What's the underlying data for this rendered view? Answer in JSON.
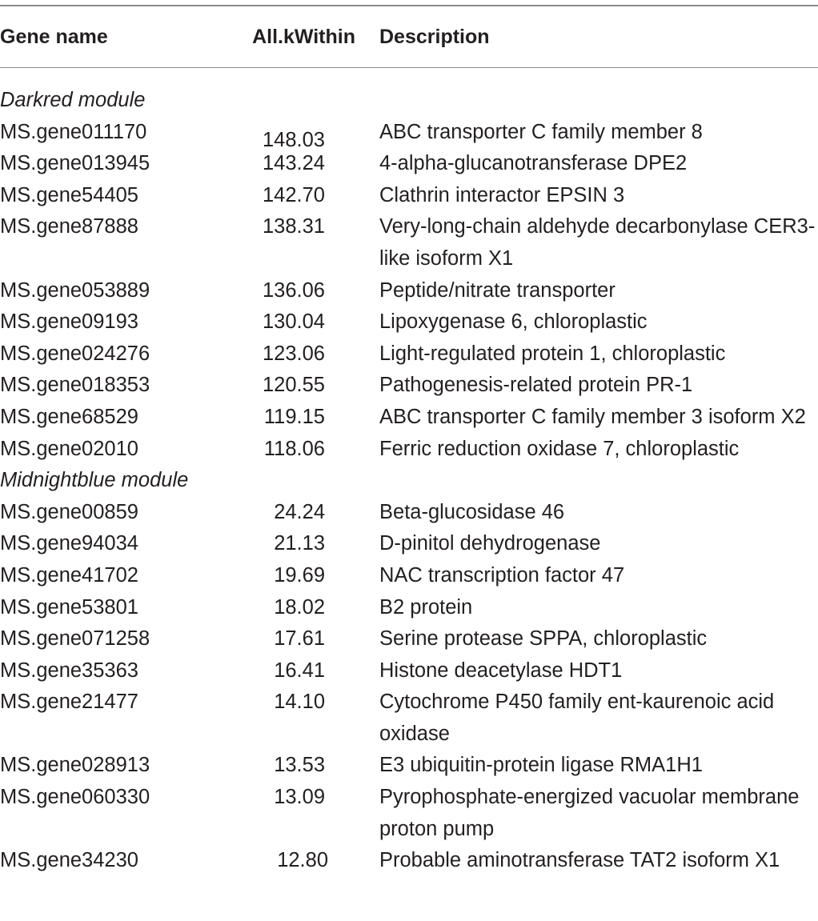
{
  "table": {
    "headers": {
      "gene": "Gene name",
      "value": "All.kWithin",
      "description": "Description"
    },
    "sections": [
      {
        "label": "Darkred module",
        "rows": [
          {
            "gene": "MS.gene011170",
            "value": "148.03",
            "description": "ABC transporter C family member 8"
          },
          {
            "gene": "MS.gene013945",
            "value": "143.24",
            "description": "4-alpha-glucanotransferase DPE2"
          },
          {
            "gene": "MS.gene54405",
            "value": "142.70",
            "description": "Clathrin interactor EPSIN 3"
          },
          {
            "gene": "MS.gene87888",
            "value": "138.31",
            "description": "Very-long-chain aldehyde decarbonylase CER3-like isoform X1"
          },
          {
            "gene": "MS.gene053889",
            "value": "136.06",
            "description": "Peptide/nitrate transporter"
          },
          {
            "gene": "MS.gene09193",
            "value": "130.04",
            "description": "Lipoxygenase 6, chloroplastic"
          },
          {
            "gene": "MS.gene024276",
            "value": "123.06",
            "description": "Light-regulated protein 1, chloroplastic"
          },
          {
            "gene": "MS.gene018353",
            "value": "120.55",
            "description": "Pathogenesis-related protein PR-1"
          },
          {
            "gene": "MS.gene68529",
            "value": "119.15",
            "description": "ABC transporter C family member 3 isoform X2"
          },
          {
            "gene": "MS.gene02010",
            "value": "118.06",
            "description": "Ferric reduction oxidase 7, chloroplastic"
          }
        ]
      },
      {
        "label": "Midnightblue module",
        "rows": [
          {
            "gene": "MS.gene00859",
            "value": "24.24",
            "description": "Beta-glucosidase 46"
          },
          {
            "gene": "MS.gene94034",
            "value": "21.13",
            "description": "D-pinitol dehydrogenase"
          },
          {
            "gene": "MS.gene41702",
            "value": "19.69",
            "description": "NAC transcription factor 47"
          },
          {
            "gene": "MS.gene53801",
            "value": "18.02",
            "description": "B2 protein"
          },
          {
            "gene": "MS.gene071258",
            "value": "17.61",
            "description": "Serine protease SPPA, chloroplastic"
          },
          {
            "gene": "MS.gene35363",
            "value": "16.41",
            "description": "Histone deacetylase HDT1"
          },
          {
            "gene": "MS.gene21477",
            "value": "14.10",
            "description": "Cytochrome P450 family ent-kaurenoic acid oxidase"
          },
          {
            "gene": "MS.gene028913",
            "value": "13.53",
            "description": "E3 ubiquitin-protein ligase RMA1H1"
          },
          {
            "gene": "MS.gene060330",
            "value": "13.09",
            "description": "Pyrophosphate-energized vacuolar membrane proton pump"
          },
          {
            "gene": "MS.gene34230",
            "value": "12.80",
            "description": "Probable aminotransferase TAT2 isoform X1"
          }
        ]
      }
    ]
  }
}
